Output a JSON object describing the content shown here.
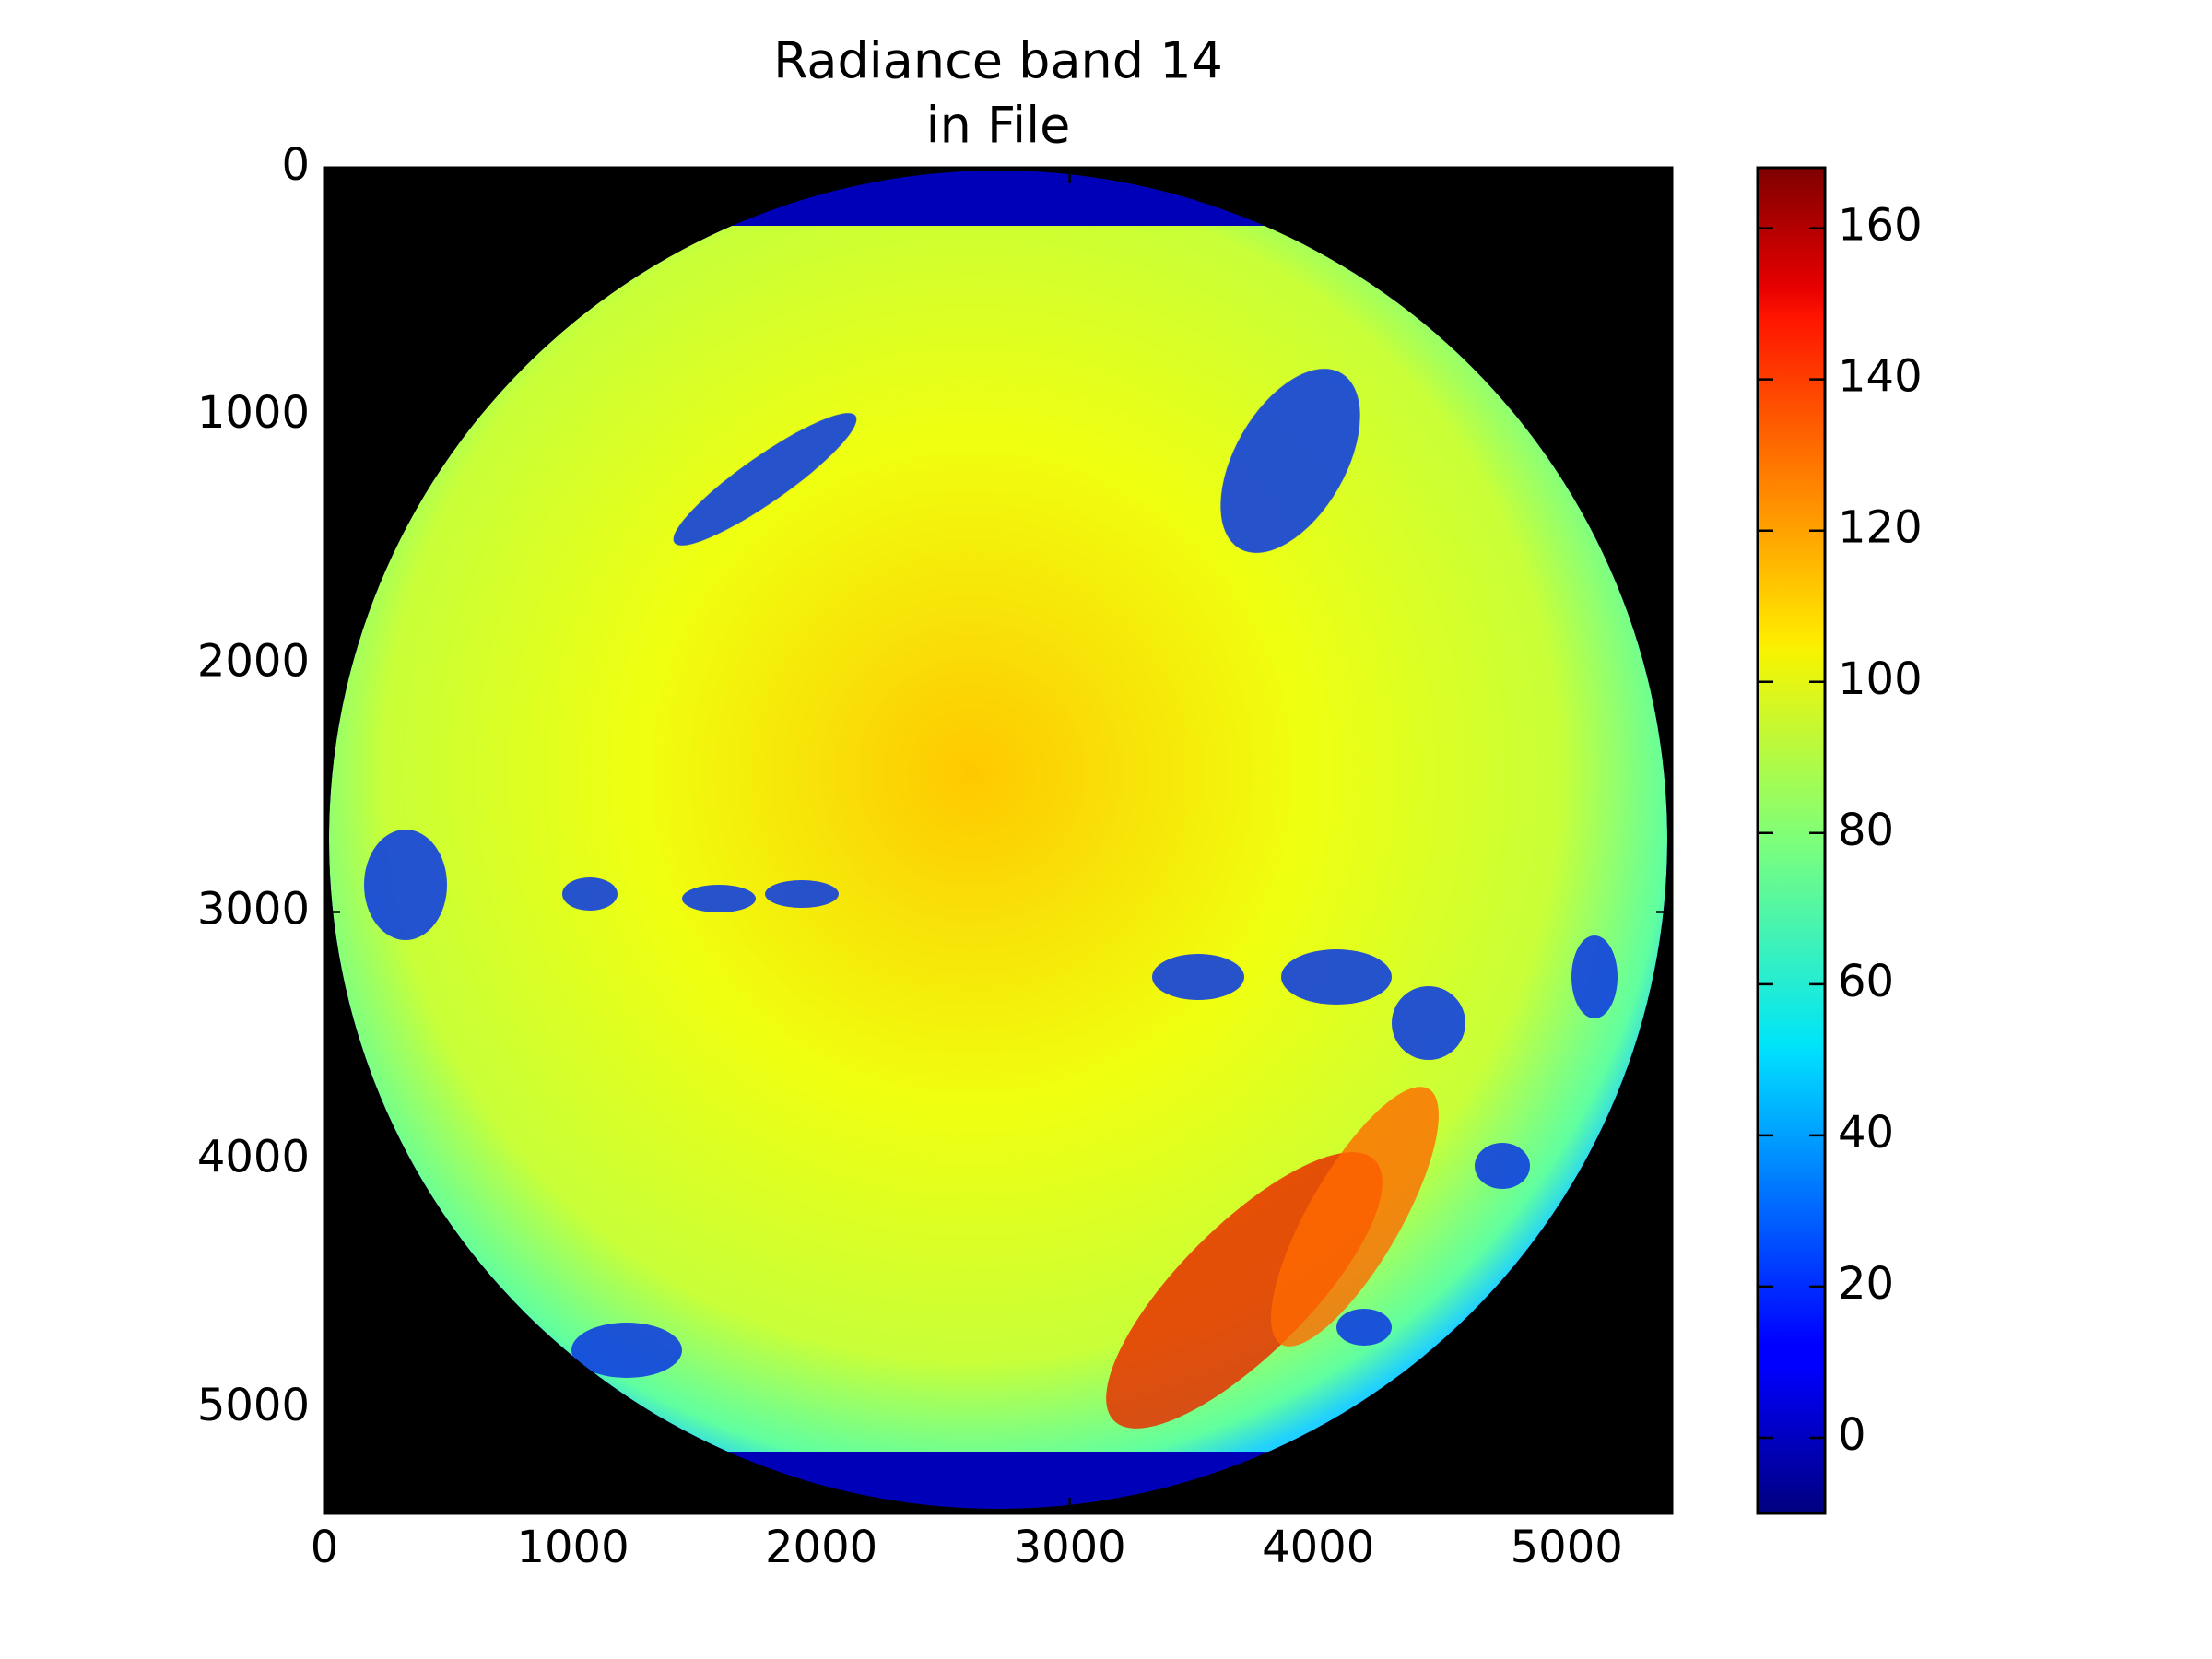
{
  "chart_data": {
    "type": "image",
    "title": [
      "Radiance band 14",
      "in File"
    ],
    "background": "black",
    "xlim": [
      0,
      5424
    ],
    "xticks": [
      0,
      1000,
      2000,
      3000,
      4000,
      5000
    ],
    "ylim": [
      5424,
      0
    ],
    "yticks": [
      0,
      1000,
      2000,
      3000,
      4000,
      5000
    ],
    "colorbar": {
      "cmap": "jet",
      "lim": [
        -10,
        168
      ],
      "ticks": [
        0,
        20,
        40,
        60,
        80,
        100,
        120,
        140,
        160
      ]
    }
  }
}
